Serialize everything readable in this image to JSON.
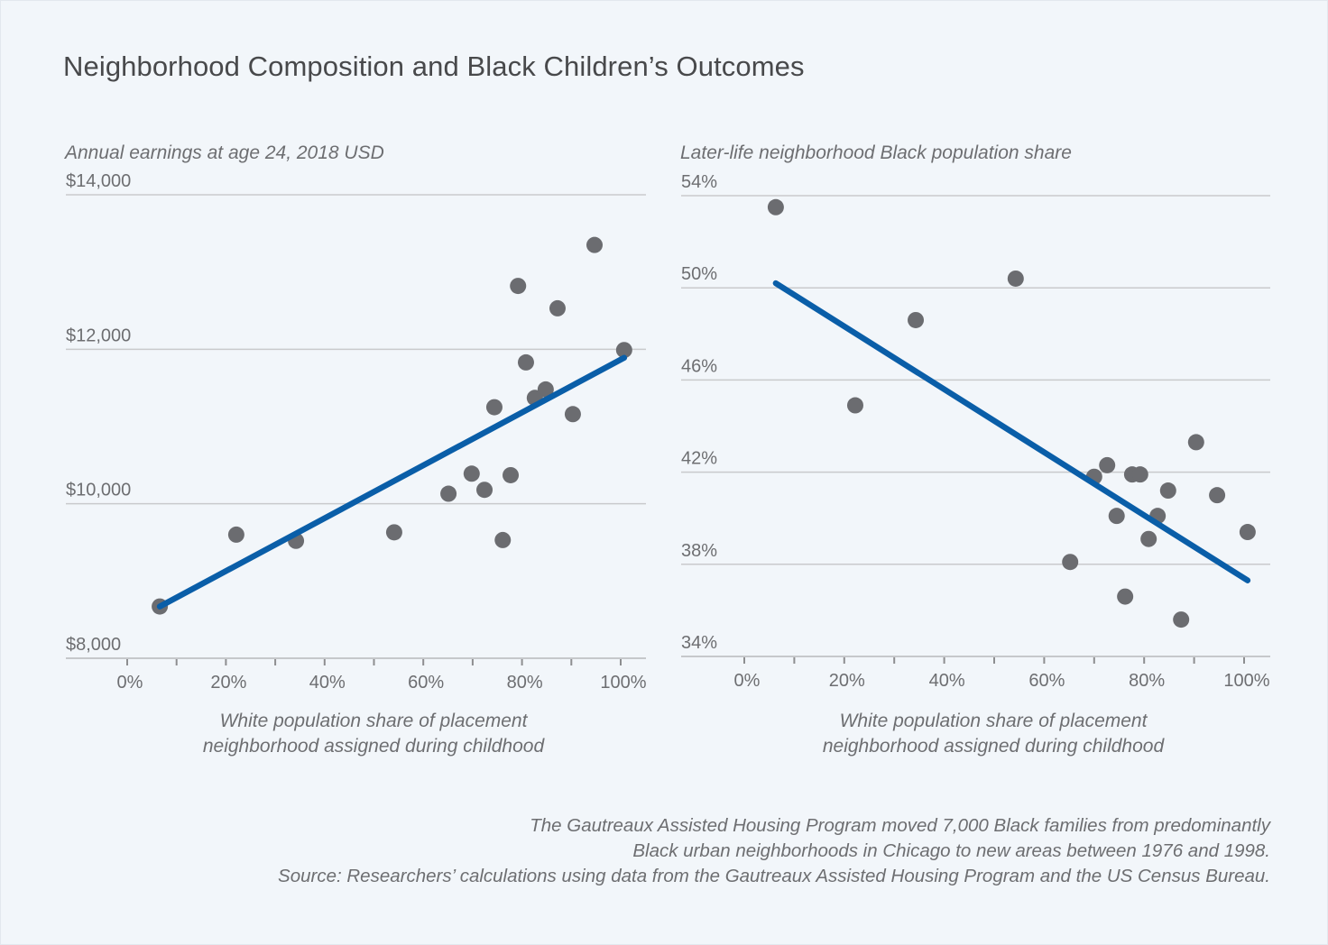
{
  "title": "Neighborhood Composition and Black Children’s Outcomes",
  "colors": {
    "background": "#f2f6fa",
    "dot": "#6b6c70",
    "fit_line": "#0a5ea8",
    "text": "#6d6e71",
    "title": "#48494b"
  },
  "chart_data": [
    {
      "type": "scatter",
      "id": "earnings",
      "title": "",
      "ylabel": "Annual earnings at age 24, 2018 USD",
      "xlabel": "White population share of placement neighborhood assigned during childhood",
      "xlabel_lines": [
        "White population share of placement",
        "neighborhood assigned during childhood"
      ],
      "xlim": [
        0,
        100
      ],
      "ylim": [
        8000,
        14000
      ],
      "x_ticks": [
        0,
        20,
        40,
        60,
        80,
        100
      ],
      "x_minor_ticks": [
        10,
        30,
        50,
        70,
        90
      ],
      "x_tick_labels": [
        "0%",
        "20%",
        "40%",
        "60%",
        "80%",
        "100%"
      ],
      "y_ticks": [
        8000,
        10000,
        12000,
        14000
      ],
      "y_tick_labels": [
        "$8,000",
        "$10,000",
        "$12,000",
        "$14,000"
      ],
      "grid": true,
      "points": [
        {
          "x": 6.6,
          "y": 8670
        },
        {
          "x": 22.1,
          "y": 9600
        },
        {
          "x": 34.2,
          "y": 9520
        },
        {
          "x": 54.1,
          "y": 9630
        },
        {
          "x": 65.1,
          "y": 10130
        },
        {
          "x": 69.8,
          "y": 10390
        },
        {
          "x": 72.4,
          "y": 10180
        },
        {
          "x": 77.7,
          "y": 10370
        },
        {
          "x": 76.1,
          "y": 9530
        },
        {
          "x": 74.4,
          "y": 11250
        },
        {
          "x": 82.6,
          "y": 11370
        },
        {
          "x": 84.8,
          "y": 11480
        },
        {
          "x": 80.8,
          "y": 11830
        },
        {
          "x": 90.3,
          "y": 11160
        },
        {
          "x": 79.2,
          "y": 12820
        },
        {
          "x": 87.2,
          "y": 12530
        },
        {
          "x": 94.7,
          "y": 13350
        },
        {
          "x": 100.7,
          "y": 11990
        }
      ],
      "fit_line": {
        "x": [
          6.6,
          100.7
        ],
        "y": [
          8670,
          11890
        ]
      }
    },
    {
      "type": "scatter",
      "id": "black-share",
      "title": "",
      "ylabel": "Later-life neighborhood Black population share",
      "xlabel": "White population share of placement neighborhood assigned during childhood",
      "xlabel_lines": [
        "White population share of placement",
        "neighborhood assigned during childhood"
      ],
      "xlim": [
        0,
        100
      ],
      "ylim": [
        34,
        54
      ],
      "x_ticks": [
        0,
        20,
        40,
        60,
        80,
        100
      ],
      "x_minor_ticks": [
        10,
        30,
        50,
        70,
        90
      ],
      "x_tick_labels": [
        "0%",
        "20%",
        "40%",
        "60%",
        "80%",
        "100%"
      ],
      "y_ticks": [
        34,
        38,
        42,
        46,
        50,
        54
      ],
      "y_tick_labels": [
        "34%",
        "38%",
        "42%",
        "46%",
        "50%",
        "54%"
      ],
      "grid": true,
      "points": [
        {
          "x": 6.3,
          "y": 53.5
        },
        {
          "x": 54.3,
          "y": 50.4
        },
        {
          "x": 34.3,
          "y": 48.6
        },
        {
          "x": 22.2,
          "y": 44.9
        },
        {
          "x": 90.4,
          "y": 43.3
        },
        {
          "x": 72.6,
          "y": 42.3
        },
        {
          "x": 70.0,
          "y": 41.8
        },
        {
          "x": 77.6,
          "y": 41.9
        },
        {
          "x": 79.2,
          "y": 41.9
        },
        {
          "x": 84.8,
          "y": 41.2
        },
        {
          "x": 94.6,
          "y": 41.0
        },
        {
          "x": 74.5,
          "y": 40.1
        },
        {
          "x": 82.7,
          "y": 40.1
        },
        {
          "x": 80.9,
          "y": 39.1
        },
        {
          "x": 100.7,
          "y": 39.4
        },
        {
          "x": 65.2,
          "y": 38.1
        },
        {
          "x": 76.2,
          "y": 36.6
        },
        {
          "x": 87.4,
          "y": 35.6
        }
      ],
      "fit_line": {
        "x": [
          6.3,
          100.7
        ],
        "y": [
          50.2,
          37.3
        ]
      }
    }
  ],
  "notes": [
    "The Gautreaux Assisted Housing Program moved 7,000 Black families from predominantly",
    "Black urban neighborhoods in Chicago to new areas between 1976 and 1998.",
    "Source: Researchers’ calculations using data from the Gautreaux Assisted Housing Program and the US Census Bureau."
  ]
}
